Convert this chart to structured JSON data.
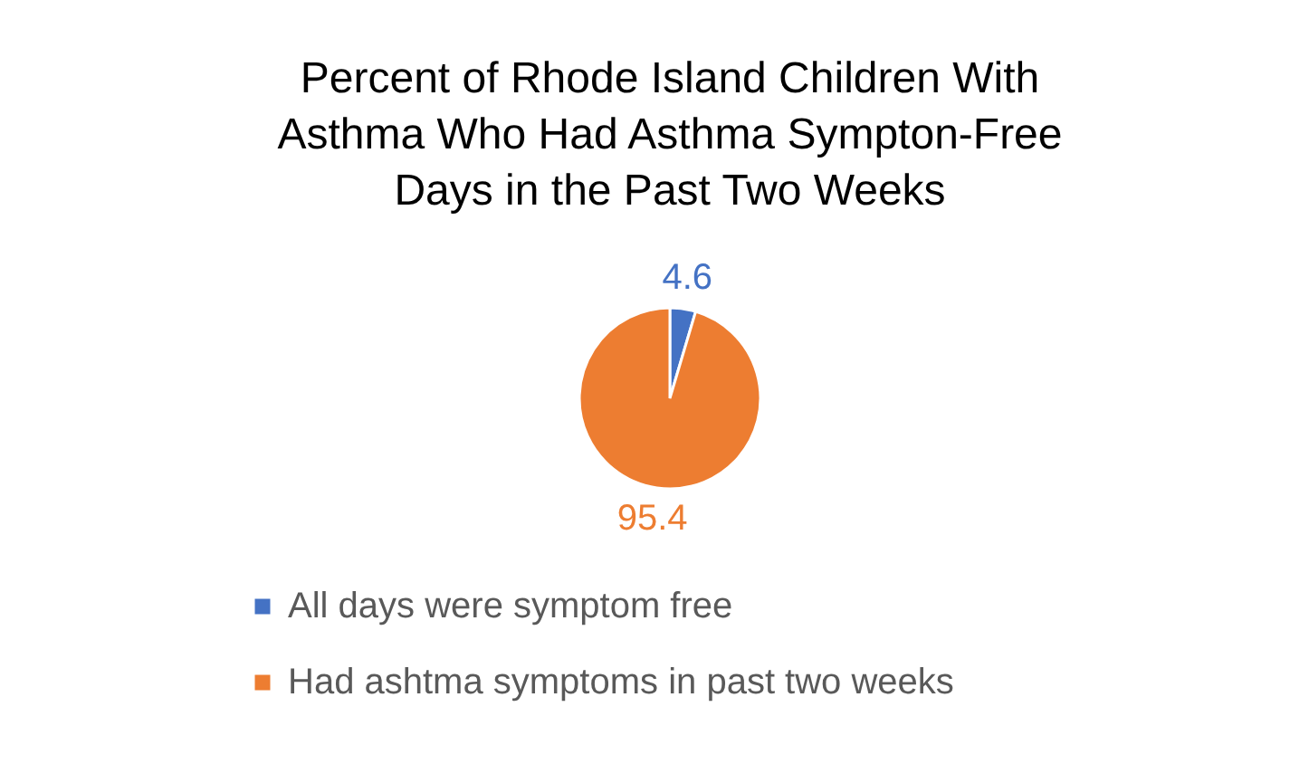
{
  "chart_data": {
    "type": "pie",
    "title": "Percent of Rhode Island Children With Asthma Who Had Asthma Sympton-Free Days in the Past Two Weeks",
    "categories": [
      "All days were symptom free",
      "Had ashtma symptoms in past two weeks"
    ],
    "values": [
      4.6,
      95.4
    ],
    "colors": [
      "#4472c4",
      "#ed7d31"
    ],
    "data_labels": true,
    "legend": "bottom"
  }
}
